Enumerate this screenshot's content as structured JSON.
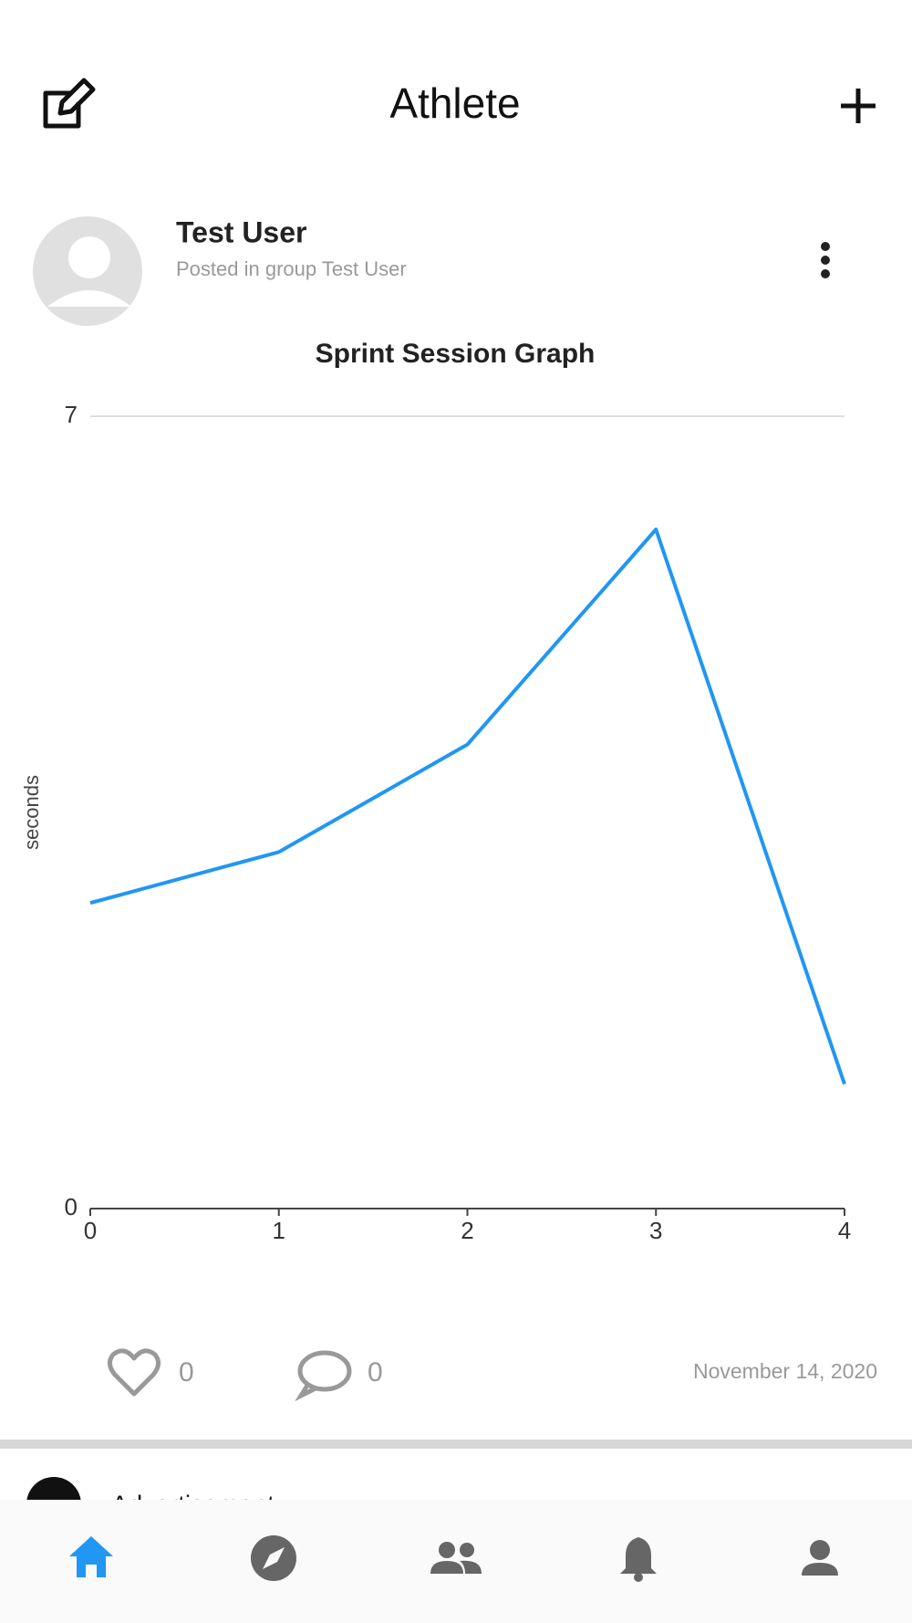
{
  "header": {
    "title": "Athlete"
  },
  "post": {
    "author": "Test User",
    "group_line": "Posted in group Test User",
    "likes": 0,
    "comments": 0,
    "date": "November 14, 2020"
  },
  "chart_data": {
    "type": "line",
    "title": "Sprint Session Graph",
    "y_label": "seconds",
    "x": [
      0,
      1,
      2,
      3,
      4
    ],
    "series": [
      {
        "name": "seconds",
        "color": "#2196f3",
        "values": [
          2.7,
          3.15,
          4.1,
          6.0,
          1.1
        ]
      }
    ],
    "xlim": [
      0,
      4
    ],
    "xticks": [
      0,
      1,
      2,
      3,
      4
    ],
    "ylim": [
      0,
      7
    ],
    "yticks": [
      0,
      7
    ],
    "grid": true
  },
  "ad": {
    "text": "Advertisement"
  }
}
